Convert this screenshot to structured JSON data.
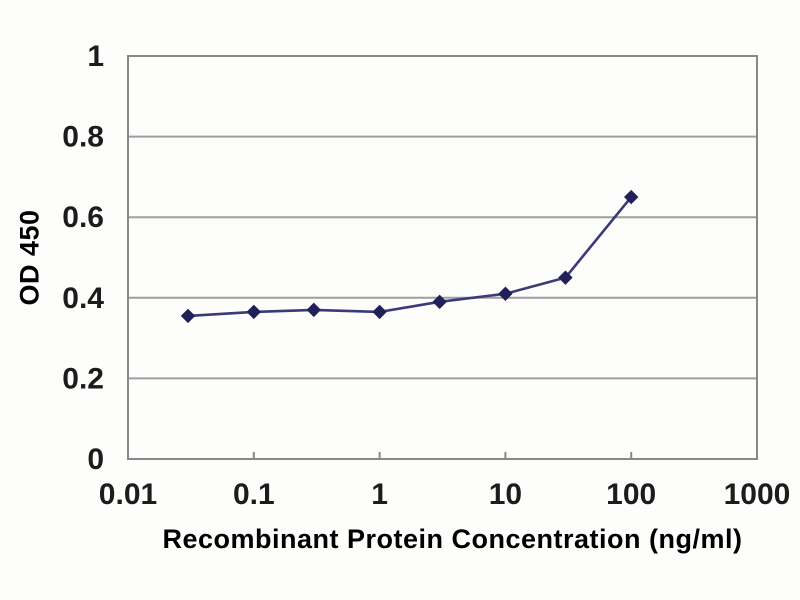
{
  "chart_data": {
    "type": "line",
    "xscale": "log",
    "x": [
      0.03,
      0.1,
      0.3,
      1,
      3,
      10,
      30,
      100
    ],
    "y": [
      0.355,
      0.365,
      0.37,
      0.365,
      0.39,
      0.41,
      0.45,
      0.65
    ],
    "xlabel": "Recombinant Protein Concentration (ng/ml)",
    "ylabel": "OD 450",
    "x_tick_values": [
      0.01,
      0.1,
      1,
      10,
      100,
      1000
    ],
    "x_tick_labels": [
      "0.01",
      "0.1",
      "1",
      "10",
      "100",
      "1000"
    ],
    "y_tick_values": [
      0,
      0.2,
      0.4,
      0.6,
      0.8,
      1
    ],
    "y_tick_labels": [
      "0",
      "0.2",
      "0.4",
      "0.6",
      "0.8",
      "1"
    ],
    "xlim": [
      0.01,
      1000
    ],
    "ylim": [
      0,
      1
    ],
    "grid": "horizontal",
    "legend": "none",
    "marker": "diamond",
    "colors": {
      "line": "#3a3a78",
      "marker": "#20205a",
      "grid": "#9e9e9e",
      "frame": "#888888",
      "text": "#1c1c1c",
      "background": "#fdfdfb"
    }
  }
}
